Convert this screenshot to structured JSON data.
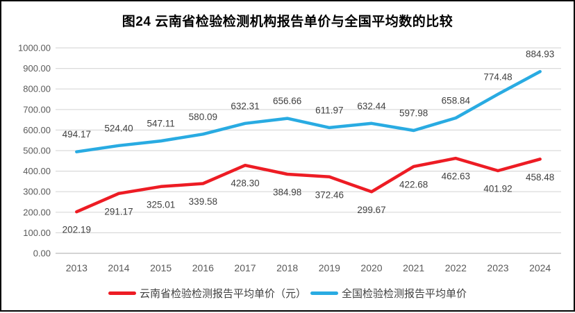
{
  "title": "图24 云南省检验检测机构报告单价与全国平均数的比较",
  "colors": {
    "yunnan_line": "#ED1C24",
    "national_line": "#29ABE2",
    "gridline": "#D9D9D9",
    "zero_axis_line": "#C6C6C6",
    "axis_label": "#595959",
    "data_label": "#3f3f3f",
    "page_border": "#000000"
  },
  "legend": [
    {
      "label": "云南省检验检测报告平均单价（元）",
      "color": "#ED1C24"
    },
    {
      "label": "全国检验检测报告平均单价",
      "color": "#29ABE2"
    }
  ],
  "chart_data": {
    "type": "line",
    "title": "图24 云南省检验检测机构报告单价与全国平均数的比较",
    "categories": [
      "2013",
      "2014",
      "2015",
      "2016",
      "2017",
      "2018",
      "2019",
      "2020",
      "2021",
      "2022",
      "2023",
      "2024"
    ],
    "series": [
      {
        "name": "云南省检验检测报告平均单价（元）",
        "color": "#ED1C24",
        "label_position": "below",
        "values": [
          202.19,
          291.17,
          325.01,
          339.58,
          428.3,
          384.98,
          372.46,
          299.67,
          422.68,
          462.63,
          401.92,
          458.48
        ]
      },
      {
        "name": "全国检验检测报告平均单价",
        "color": "#29ABE2",
        "label_position": "above",
        "values": [
          494.17,
          524.4,
          547.11,
          580.09,
          632.31,
          656.66,
          611.97,
          632.44,
          597.98,
          658.84,
          774.48,
          884.93
        ]
      }
    ],
    "xlabel": "",
    "ylabel": "",
    "ylim": [
      0,
      1000
    ],
    "ytick_step": 100,
    "ytick_decimals": 2,
    "data_label_decimals": 2,
    "grid": true,
    "legend_position": "bottom",
    "data_labels": true
  }
}
